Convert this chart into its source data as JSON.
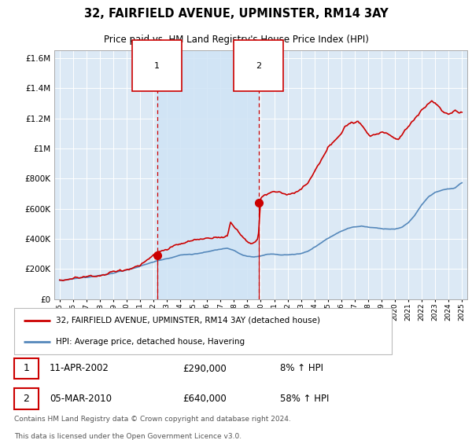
{
  "title": "32, FAIRFIELD AVENUE, UPMINSTER, RM14 3AY",
  "subtitle": "Price paid vs. HM Land Registry's House Price Index (HPI)",
  "hpi_label": "HPI: Average price, detached house, Havering",
  "price_label": "32, FAIRFIELD AVENUE, UPMINSTER, RM14 3AY (detached house)",
  "footnote1": "Contains HM Land Registry data © Crown copyright and database right 2024.",
  "footnote2": "This data is licensed under the Open Government Licence v3.0.",
  "price_color": "#cc0000",
  "hpi_color": "#5588bb",
  "background_color": "#dce9f5",
  "shade_color": "#c8ddf0",
  "vline_color": "#cc0000",
  "vline1_x": 2002.27,
  "vline2_x": 2009.83,
  "marker1_x": 2002.27,
  "marker1_y": 290000,
  "marker2_x": 2009.83,
  "marker2_y": 640000,
  "ylim": [
    0,
    1650000
  ],
  "xlim_start": 1994.6,
  "xlim_end": 2025.4,
  "yticks": [
    0,
    200000,
    400000,
    600000,
    800000,
    1000000,
    1200000,
    1400000,
    1600000
  ]
}
